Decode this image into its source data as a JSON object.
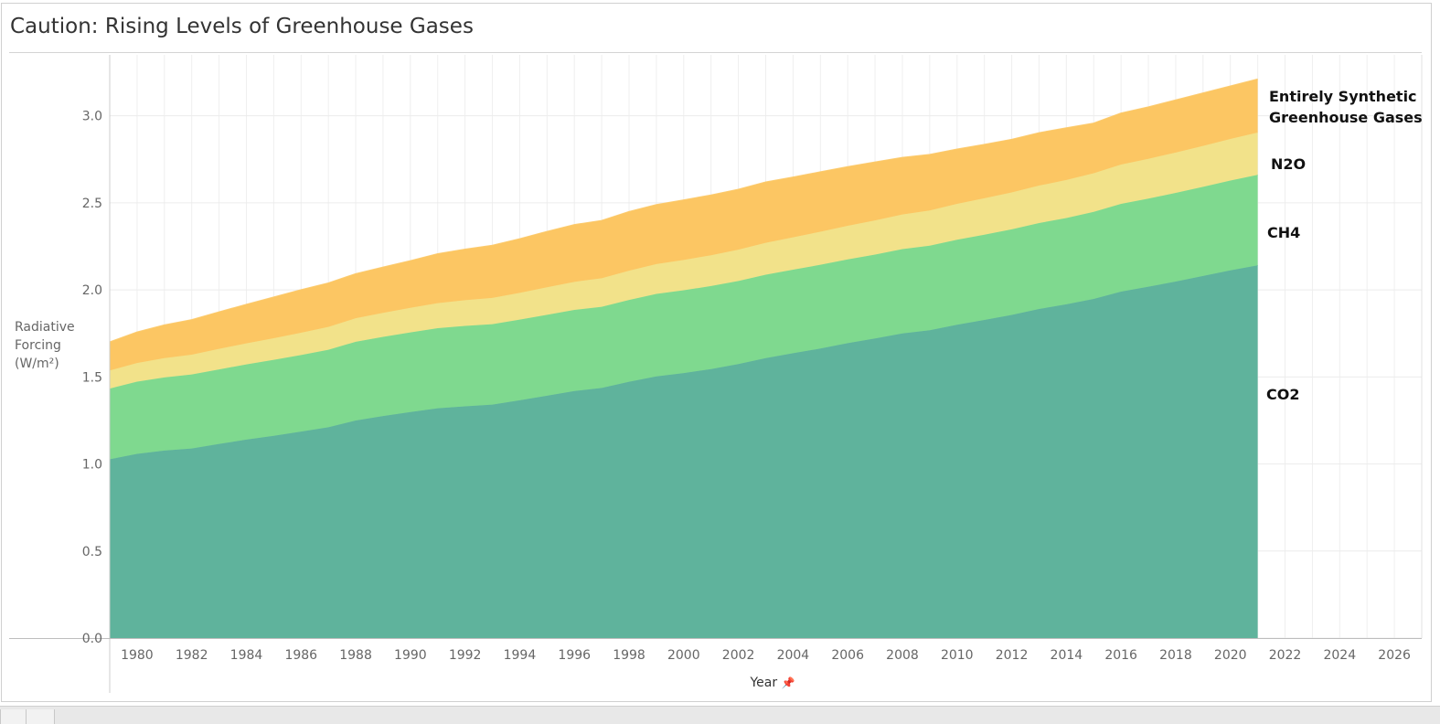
{
  "title": "Caution: Rising Levels of Greenhouse Gases",
  "chart_data": {
    "type": "area",
    "stacked": true,
    "title": "Caution: Rising Levels of Greenhouse Gases",
    "xlabel": "Year",
    "ylabel_lines": [
      "Radiative",
      "Forcing",
      "(W/m²)"
    ],
    "xlim": [
      1979,
      2027
    ],
    "ylim": [
      0,
      3.35
    ],
    "x_ticks": [
      1980,
      1982,
      1984,
      1986,
      1988,
      1990,
      1992,
      1994,
      1996,
      1998,
      2000,
      2002,
      2004,
      2006,
      2008,
      2010,
      2012,
      2014,
      2016,
      2018,
      2020,
      2022,
      2024,
      2026
    ],
    "y_ticks": [
      "0.0",
      "0.5",
      "1.0",
      "1.5",
      "2.0",
      "2.5",
      "3.0"
    ],
    "grid": true,
    "x": [
      1979,
      1980,
      1981,
      1982,
      1983,
      1984,
      1985,
      1986,
      1987,
      1988,
      1989,
      1990,
      1991,
      1992,
      1993,
      1994,
      1995,
      1996,
      1997,
      1998,
      1999,
      2000,
      2001,
      2002,
      2003,
      2004,
      2005,
      2006,
      2007,
      2008,
      2009,
      2010,
      2011,
      2012,
      2013,
      2014,
      2015,
      2016,
      2017,
      2018,
      2019,
      2020,
      2021
    ],
    "series": [
      {
        "name": "CO2",
        "color": "#5fb39c",
        "values": [
          1.027,
          1.058,
          1.077,
          1.089,
          1.115,
          1.14,
          1.162,
          1.186,
          1.211,
          1.25,
          1.275,
          1.298,
          1.32,
          1.331,
          1.341,
          1.366,
          1.392,
          1.419,
          1.437,
          1.472,
          1.503,
          1.522,
          1.545,
          1.574,
          1.608,
          1.636,
          1.663,
          1.694,
          1.721,
          1.75,
          1.768,
          1.8,
          1.827,
          1.856,
          1.89,
          1.917,
          1.948,
          1.99,
          2.018,
          2.048,
          2.08,
          2.112,
          2.141
        ]
      },
      {
        "name": "CH4",
        "color": "#7fd98f",
        "values": [
          0.406,
          0.415,
          0.42,
          0.425,
          0.428,
          0.432,
          0.436,
          0.44,
          0.445,
          0.452,
          0.455,
          0.458,
          0.46,
          0.462,
          0.462,
          0.463,
          0.465,
          0.466,
          0.466,
          0.47,
          0.474,
          0.476,
          0.477,
          0.477,
          0.479,
          0.48,
          0.481,
          0.481,
          0.482,
          0.484,
          0.486,
          0.488,
          0.49,
          0.492,
          0.494,
          0.496,
          0.5,
          0.504,
          0.506,
          0.509,
          0.512,
          0.516,
          0.52
        ]
      },
      {
        "name": "N2O",
        "color": "#f2e28a",
        "values": [
          0.104,
          0.107,
          0.111,
          0.114,
          0.118,
          0.121,
          0.124,
          0.128,
          0.131,
          0.135,
          0.138,
          0.141,
          0.144,
          0.148,
          0.151,
          0.154,
          0.158,
          0.161,
          0.164,
          0.168,
          0.171,
          0.174,
          0.177,
          0.18,
          0.183,
          0.186,
          0.19,
          0.193,
          0.196,
          0.199,
          0.202,
          0.206,
          0.209,
          0.212,
          0.215,
          0.218,
          0.222,
          0.226,
          0.229,
          0.232,
          0.235,
          0.239,
          0.243
        ]
      },
      {
        "name": "Entirely Synthetic Greenhouse Gases",
        "label_lines": [
          "Entirely Synthetic",
          "Greenhouse Gases"
        ],
        "color": "#fcc663",
        "values": [
          0.163,
          0.177,
          0.19,
          0.2,
          0.212,
          0.223,
          0.236,
          0.246,
          0.252,
          0.255,
          0.262,
          0.27,
          0.283,
          0.292,
          0.301,
          0.31,
          0.32,
          0.328,
          0.331,
          0.339,
          0.341,
          0.344,
          0.345,
          0.346,
          0.349,
          0.345,
          0.343,
          0.339,
          0.335,
          0.327,
          0.321,
          0.314,
          0.309,
          0.304,
          0.303,
          0.299,
          0.287,
          0.295,
          0.297,
          0.301,
          0.303,
          0.303,
          0.306
        ]
      }
    ]
  }
}
